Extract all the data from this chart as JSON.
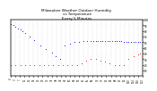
{
  "title": "Milwaukee Weather Outdoor Humidity\nvs Temperature\nEvery 5 Minutes",
  "title_fontsize": 3.0,
  "background_color": "#ffffff",
  "blue_x": [
    0,
    2,
    4,
    6,
    8,
    10,
    12,
    16,
    20,
    25,
    30,
    35,
    38,
    42,
    46,
    50,
    54,
    58,
    62,
    65,
    68,
    70,
    72,
    74,
    76,
    78,
    80,
    82,
    84,
    86,
    88,
    90,
    92,
    94,
    96,
    98,
    100,
    102,
    104,
    106,
    108,
    110
  ],
  "blue_y": [
    92,
    90,
    88,
    85,
    83,
    80,
    76,
    70,
    64,
    55,
    48,
    42,
    36,
    30,
    55,
    58,
    60,
    60,
    62,
    63,
    63,
    63,
    63,
    63,
    63,
    63,
    63,
    63,
    63,
    62,
    62,
    62,
    62,
    62,
    61,
    61,
    61,
    61,
    60,
    60,
    60,
    60
  ],
  "red_x": [
    0,
    4,
    8,
    12,
    16,
    20,
    24,
    28,
    32,
    36,
    40,
    44,
    48,
    52,
    56,
    60,
    64,
    68,
    72,
    76,
    80,
    84,
    88,
    92,
    96,
    100,
    104,
    108,
    110
  ],
  "red_y": [
    20,
    20,
    20,
    20,
    20,
    20,
    20,
    20,
    20,
    20,
    20,
    20,
    20,
    20,
    20,
    22,
    28,
    30,
    30,
    28,
    26,
    22,
    20,
    20,
    20,
    30,
    35,
    38,
    40
  ],
  "ylim": [
    0,
    100
  ],
  "xlim": [
    0,
    112
  ],
  "y_ticks": [
    10,
    20,
    30,
    40,
    50,
    60,
    70,
    80,
    90,
    100
  ],
  "x_ticks_n": 30
}
